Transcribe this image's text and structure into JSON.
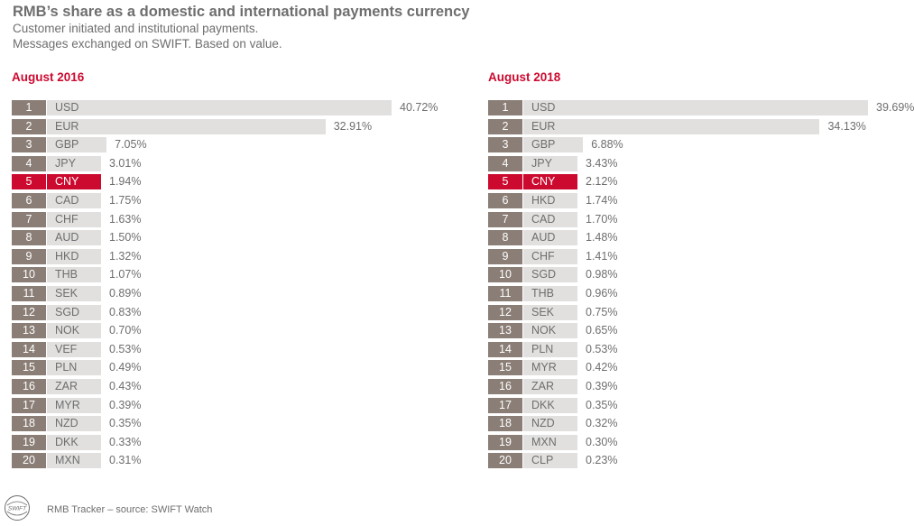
{
  "header": {
    "title": "RMB’s share as a domestic and international payments currency",
    "subtitle_line1": "Customer initiated and institutional payments.",
    "subtitle_line2": "Messages exchanged on SWIFT. Based on value."
  },
  "colors": {
    "highlight": "#cc0a2f",
    "rank_box": "#8a7e76",
    "bar": "#e1e0df",
    "text": "#6e6e6e"
  },
  "chart_data": [
    {
      "type": "bar",
      "orientation": "horizontal",
      "title": "August 2016",
      "highlight": "CNY",
      "ranks": [
        "1",
        "2",
        "3",
        "4",
        "5",
        "6",
        "7",
        "8",
        "9",
        "10",
        "11",
        "12",
        "13",
        "14",
        "15",
        "16",
        "17",
        "18",
        "19",
        "20"
      ],
      "categories": [
        "USD",
        "EUR",
        "GBP",
        "JPY",
        "CNY",
        "CAD",
        "CHF",
        "AUD",
        "HKD",
        "THB",
        "SEK",
        "SGD",
        "NOK",
        "VEF",
        "PLN",
        "ZAR",
        "MYR",
        "NZD",
        "DKK",
        "MXN"
      ],
      "values": [
        40.72,
        32.91,
        7.05,
        3.01,
        1.94,
        1.75,
        1.63,
        1.5,
        1.32,
        1.07,
        0.89,
        0.83,
        0.7,
        0.53,
        0.49,
        0.43,
        0.39,
        0.35,
        0.33,
        0.31
      ],
      "labels": [
        "40.72%",
        "32.91%",
        "7.05%",
        "3.01%",
        "1.94%",
        "1.75%",
        "1.63%",
        "1.50%",
        "1.32%",
        "1.07%",
        "0.89%",
        "0.83%",
        "0.70%",
        "0.53%",
        "0.49%",
        "0.43%",
        "0.39%",
        "0.35%",
        "0.33%",
        "0.31%"
      ],
      "unit": "%"
    },
    {
      "type": "bar",
      "orientation": "horizontal",
      "title": "August 2018",
      "highlight": "CNY",
      "ranks": [
        "1",
        "2",
        "3",
        "4",
        "5",
        "6",
        "7",
        "8",
        "9",
        "10",
        "11",
        "12",
        "13",
        "14",
        "15",
        "16",
        "17",
        "18",
        "19",
        "20"
      ],
      "categories": [
        "USD",
        "EUR",
        "GBP",
        "JPY",
        "CNY",
        "HKD",
        "CAD",
        "AUD",
        "CHF",
        "SGD",
        "THB",
        "SEK",
        "NOK",
        "PLN",
        "MYR",
        "ZAR",
        "DKK",
        "NZD",
        "MXN",
        "CLP"
      ],
      "values": [
        39.69,
        34.13,
        6.88,
        3.43,
        2.12,
        1.74,
        1.7,
        1.48,
        1.41,
        0.98,
        0.96,
        0.75,
        0.65,
        0.53,
        0.42,
        0.39,
        0.35,
        0.32,
        0.3,
        0.23
      ],
      "labels": [
        "39.69%",
        "34.13%",
        "6.88%",
        "3.43%",
        "2.12%",
        "1.74%",
        "1.70%",
        "1.48%",
        "1.41%",
        "0.98%",
        "0.96%",
        "0.75%",
        "0.65%",
        "0.53%",
        "0.42%",
        "0.39%",
        "0.35%",
        "0.32%",
        "0.30%",
        "0.23%"
      ],
      "unit": "%"
    }
  ],
  "footer": {
    "logo_text": "SWIFT",
    "source": "RMB Tracker – source: SWIFT Watch"
  }
}
